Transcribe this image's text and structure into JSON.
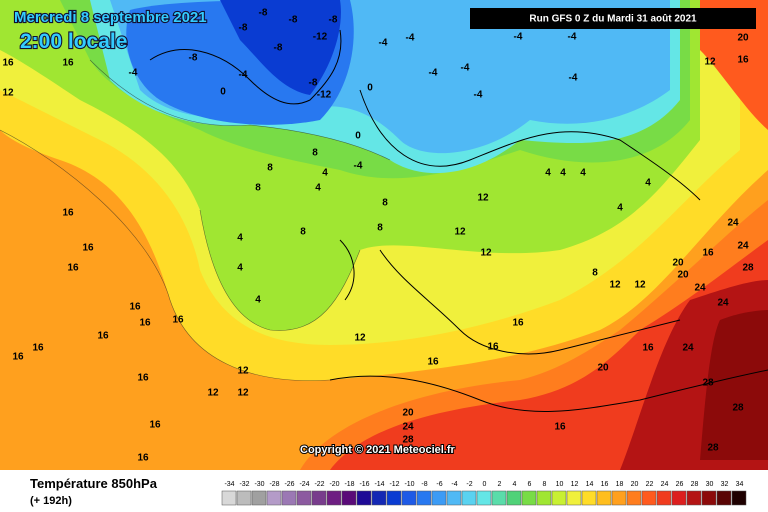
{
  "header": {
    "date": "Mercredi 8 septembre 2021",
    "time": "2:00 locale",
    "run": "Run GFS 0 Z du Mardi 31 août 2021",
    "copyright": "Copyright © 2021 Meteociel.fr"
  },
  "footer": {
    "title": "Température 850hPa",
    "lead": "(+ 192h)"
  },
  "scale": [
    {
      "value": -34,
      "color": "#d8d8d8"
    },
    {
      "value": -32,
      "color": "#bcbcbc"
    },
    {
      "value": -30,
      "color": "#a0a0a0"
    },
    {
      "value": -28,
      "color": "#b49bc8"
    },
    {
      "value": -26,
      "color": "#9b78b4"
    },
    {
      "value": -24,
      "color": "#8c5aa0"
    },
    {
      "value": -22,
      "color": "#783c8c"
    },
    {
      "value": -20,
      "color": "#6e1e82"
    },
    {
      "value": -18,
      "color": "#5a0a78"
    },
    {
      "value": -16,
      "color": "#1e0a96"
    },
    {
      "value": -14,
      "color": "#1428b4"
    },
    {
      "value": -12,
      "color": "#0a3cd2"
    },
    {
      "value": -10,
      "color": "#1e5ae6"
    },
    {
      "value": -8,
      "color": "#2878f0"
    },
    {
      "value": -6,
      "color": "#3c9bf5"
    },
    {
      "value": -4,
      "color": "#50b9f5"
    },
    {
      "value": -2,
      "color": "#5ad2f0"
    },
    {
      "value": 0,
      "color": "#64e6e6"
    },
    {
      "value": 2,
      "color": "#5adcaa"
    },
    {
      "value": 4,
      "color": "#50d278"
    },
    {
      "value": 6,
      "color": "#78dc46"
    },
    {
      "value": 8,
      "color": "#a0e632"
    },
    {
      "value": 10,
      "color": "#c8f032"
    },
    {
      "value": 12,
      "color": "#f0f03c"
    },
    {
      "value": 14,
      "color": "#ffdc28"
    },
    {
      "value": 16,
      "color": "#ffbe1e"
    },
    {
      "value": 18,
      "color": "#ffa01e"
    },
    {
      "value": 20,
      "color": "#ff7d1e"
    },
    {
      "value": 22,
      "color": "#ff5a1e"
    },
    {
      "value": 24,
      "color": "#f03c1e"
    },
    {
      "value": 26,
      "color": "#dc1e1e"
    },
    {
      "value": 28,
      "color": "#b41414"
    },
    {
      "value": 30,
      "color": "#8c0a0a"
    },
    {
      "value": 32,
      "color": "#5a0505"
    },
    {
      "value": 34,
      "color": "#1e0000"
    }
  ],
  "labels": [
    -8,
    -8,
    -8,
    -8,
    -12,
    -8,
    -4,
    -4,
    -4,
    -4,
    -4,
    -8,
    -4,
    -4,
    -4,
    -4,
    -8,
    -12,
    0,
    -4,
    0,
    0,
    -4,
    8,
    8,
    8,
    4,
    4,
    8,
    4,
    4,
    4,
    4,
    4,
    12,
    8,
    8,
    4,
    4,
    12,
    12,
    8,
    12,
    12,
    4,
    16,
    12,
    16,
    16,
    16,
    16,
    16,
    16,
    16,
    16,
    16,
    16,
    12,
    12,
    12,
    16,
    16,
    16,
    12,
    16,
    16,
    16,
    16,
    20,
    24,
    28,
    28,
    28,
    16,
    20,
    24,
    28,
    20,
    16,
    12,
    20,
    24,
    24,
    28,
    24,
    24,
    16,
    20
  ]
}
